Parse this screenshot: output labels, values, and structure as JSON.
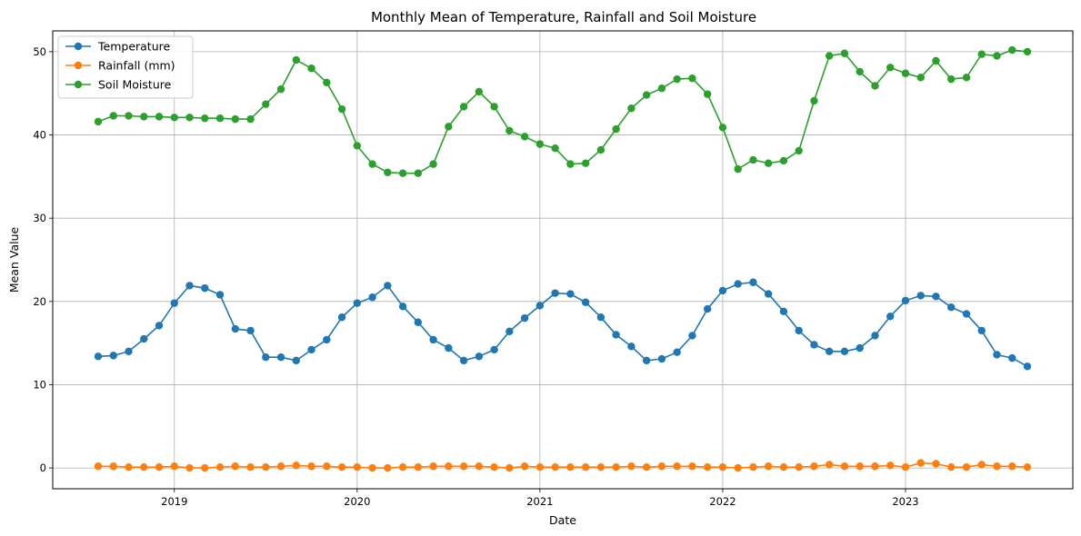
{
  "chart_data": {
    "type": "line",
    "title": "Monthly Mean of Temperature, Rainfall and Soil Moisture",
    "xlabel": "Date",
    "ylabel": "Mean Value",
    "x": [
      "2018-08",
      "2018-09",
      "2018-10",
      "2018-11",
      "2018-12",
      "2019-01",
      "2019-02",
      "2019-03",
      "2019-04",
      "2019-05",
      "2019-06",
      "2019-07",
      "2019-08",
      "2019-09",
      "2019-10",
      "2019-11",
      "2019-12",
      "2020-01",
      "2020-02",
      "2020-03",
      "2020-04",
      "2020-05",
      "2020-06",
      "2020-07",
      "2020-08",
      "2020-09",
      "2020-10",
      "2020-11",
      "2020-12",
      "2021-01",
      "2021-02",
      "2021-03",
      "2021-04",
      "2021-05",
      "2021-06",
      "2021-07",
      "2021-08",
      "2021-09",
      "2021-10",
      "2021-11",
      "2021-12",
      "2022-01",
      "2022-02",
      "2022-03",
      "2022-04",
      "2022-05",
      "2022-06",
      "2022-07",
      "2022-08",
      "2022-09",
      "2022-10",
      "2022-11",
      "2022-12",
      "2023-01",
      "2023-02",
      "2023-03",
      "2023-04",
      "2023-05",
      "2023-06",
      "2023-07",
      "2023-08",
      "2023-09"
    ],
    "x_ticks": [
      "2019",
      "2020",
      "2021",
      "2022",
      "2023"
    ],
    "ylim": [
      -2.5,
      52.5
    ],
    "y_ticks": [
      0,
      10,
      20,
      30,
      40,
      50
    ],
    "grid": true,
    "legend_position": "top-left",
    "series": [
      {
        "name": "Temperature",
        "color": "#1f77b4",
        "values": [
          13.4,
          13.5,
          14.0,
          15.5,
          17.1,
          19.8,
          21.9,
          21.6,
          20.8,
          16.7,
          16.5,
          13.3,
          13.3,
          12.9,
          14.2,
          15.4,
          18.1,
          19.8,
          20.5,
          21.9,
          19.4,
          17.5,
          15.4,
          14.4,
          12.9,
          13.4,
          14.2,
          16.4,
          18.0,
          19.5,
          21.0,
          20.9,
          19.9,
          18.1,
          16.0,
          14.6,
          12.9,
          13.1,
          13.9,
          15.9,
          19.1,
          21.3,
          22.1,
          22.3,
          20.9,
          18.8,
          16.5,
          14.8,
          14.0,
          14.0,
          14.4,
          15.9,
          18.2,
          20.1,
          20.7,
          20.6,
          19.3,
          18.5,
          16.5,
          13.6,
          13.2,
          12.2
        ]
      },
      {
        "name": "Rainfall (mm)",
        "color": "#ff7f0e",
        "values": [
          0.2,
          0.2,
          0.1,
          0.1,
          0.1,
          0.2,
          0.0,
          0.0,
          0.1,
          0.2,
          0.1,
          0.1,
          0.2,
          0.3,
          0.2,
          0.2,
          0.1,
          0.1,
          0.0,
          0.0,
          0.1,
          0.1,
          0.2,
          0.2,
          0.2,
          0.2,
          0.1,
          0.0,
          0.2,
          0.1,
          0.1,
          0.1,
          0.1,
          0.1,
          0.1,
          0.2,
          0.1,
          0.2,
          0.2,
          0.2,
          0.1,
          0.1,
          0.0,
          0.1,
          0.2,
          0.1,
          0.1,
          0.2,
          0.4,
          0.2,
          0.2,
          0.2,
          0.3,
          0.1,
          0.6,
          0.5,
          0.1,
          0.1,
          0.4,
          0.2,
          0.2,
          0.1
        ]
      },
      {
        "name": "Soil Moisture",
        "color": "#2ca02c",
        "values": [
          41.6,
          42.3,
          42.3,
          42.2,
          42.2,
          42.1,
          42.1,
          42.0,
          42.0,
          41.9,
          41.9,
          43.7,
          45.5,
          49.0,
          48.0,
          46.3,
          43.1,
          38.7,
          36.5,
          35.5,
          35.4,
          35.4,
          36.5,
          41.0,
          43.4,
          45.2,
          43.4,
          40.5,
          39.8,
          38.9,
          38.4,
          36.5,
          36.6,
          38.2,
          40.7,
          43.2,
          44.8,
          45.6,
          46.7,
          46.8,
          44.9,
          40.9,
          35.9,
          37.0,
          36.6,
          36.9,
          38.1,
          44.1,
          49.5,
          49.8,
          47.6,
          45.9,
          48.1,
          47.4,
          46.9,
          48.9,
          46.7,
          46.9,
          49.7,
          49.5,
          50.2,
          50.0
        ]
      }
    ]
  }
}
